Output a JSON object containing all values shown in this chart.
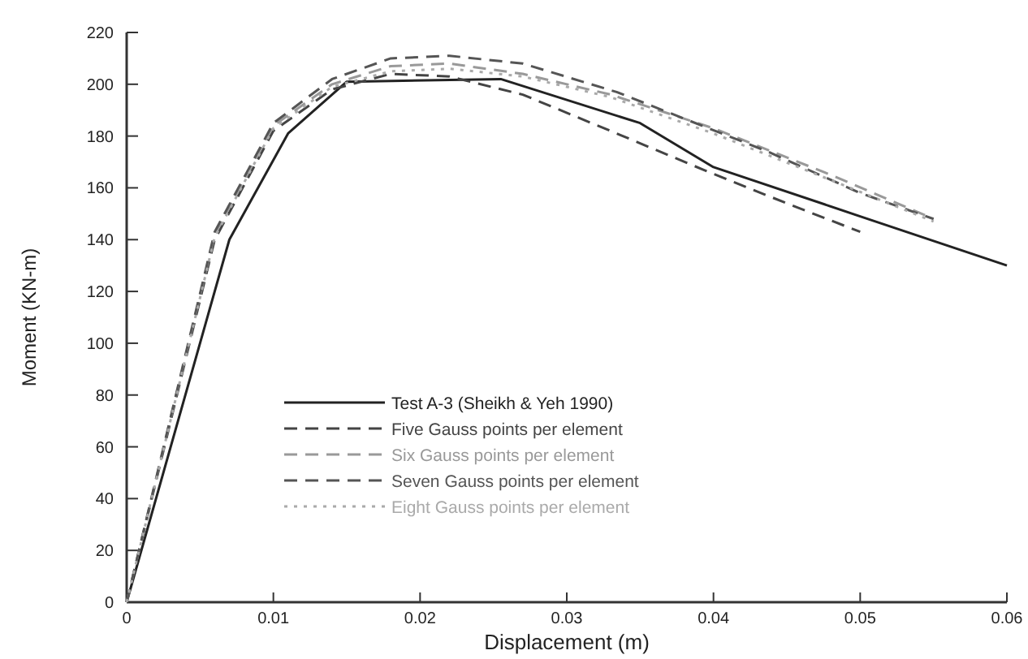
{
  "chart_data": {
    "type": "line",
    "xlabel": "Displacement (m)",
    "ylabel": "Moment (KN-m)",
    "xlim": [
      0,
      0.06
    ],
    "ylim": [
      0,
      220
    ],
    "xticks": [
      0,
      0.01,
      0.02,
      0.03,
      0.04,
      0.05,
      0.06
    ],
    "yticks": [
      0,
      20,
      40,
      60,
      80,
      100,
      120,
      140,
      160,
      180,
      200,
      220
    ],
    "grid": false,
    "legend": "left",
    "series": [
      {
        "name": "Test A-3 (Sheikh & Yeh 1990)",
        "color": "#222222",
        "line_style": "solid",
        "x": [
          0,
          0.007,
          0.011,
          0.015,
          0.0255,
          0.035,
          0.04,
          0.05,
          0.06
        ],
        "values": [
          0,
          140,
          181,
          201,
          202,
          185,
          168,
          149,
          130
        ]
      },
      {
        "name": "Five Gauss points per element",
        "color": "#444444",
        "line_style": "dashed",
        "x": [
          0,
          0.006,
          0.01,
          0.014,
          0.018,
          0.022,
          0.027,
          0.0334,
          0.0393,
          0.045,
          0.05
        ],
        "values": [
          0,
          140,
          182,
          198,
          204,
          203,
          196,
          181,
          167,
          154,
          143
        ]
      },
      {
        "name": "Six Gauss points per element",
        "color": "#999999",
        "line_style": "dashed",
        "x": [
          0,
          0.006,
          0.01,
          0.014,
          0.018,
          0.022,
          0.027,
          0.033,
          0.04,
          0.048,
          0.055
        ],
        "values": [
          0,
          142,
          184,
          200,
          207,
          208,
          204,
          196,
          183,
          165,
          148
        ]
      },
      {
        "name": "Seven Gauss points per element",
        "color": "#555555",
        "line_style": "dashed",
        "x": [
          0,
          0.006,
          0.01,
          0.014,
          0.018,
          0.022,
          0.027,
          0.0334,
          0.0437,
          0.05,
          0.055
        ],
        "values": [
          0,
          143,
          185,
          202,
          210,
          211,
          208,
          197,
          174,
          158,
          148
        ]
      },
      {
        "name": "Eight Gauss points per element",
        "color": "#aaaaaa",
        "line_style": "dotted",
        "x": [
          0,
          0.006,
          0.01,
          0.014,
          0.018,
          0.022,
          0.027,
          0.033,
          0.04,
          0.048,
          0.055
        ],
        "values": [
          0,
          141,
          183,
          199,
          205,
          206,
          203,
          195,
          181,
          163,
          147
        ]
      }
    ]
  }
}
